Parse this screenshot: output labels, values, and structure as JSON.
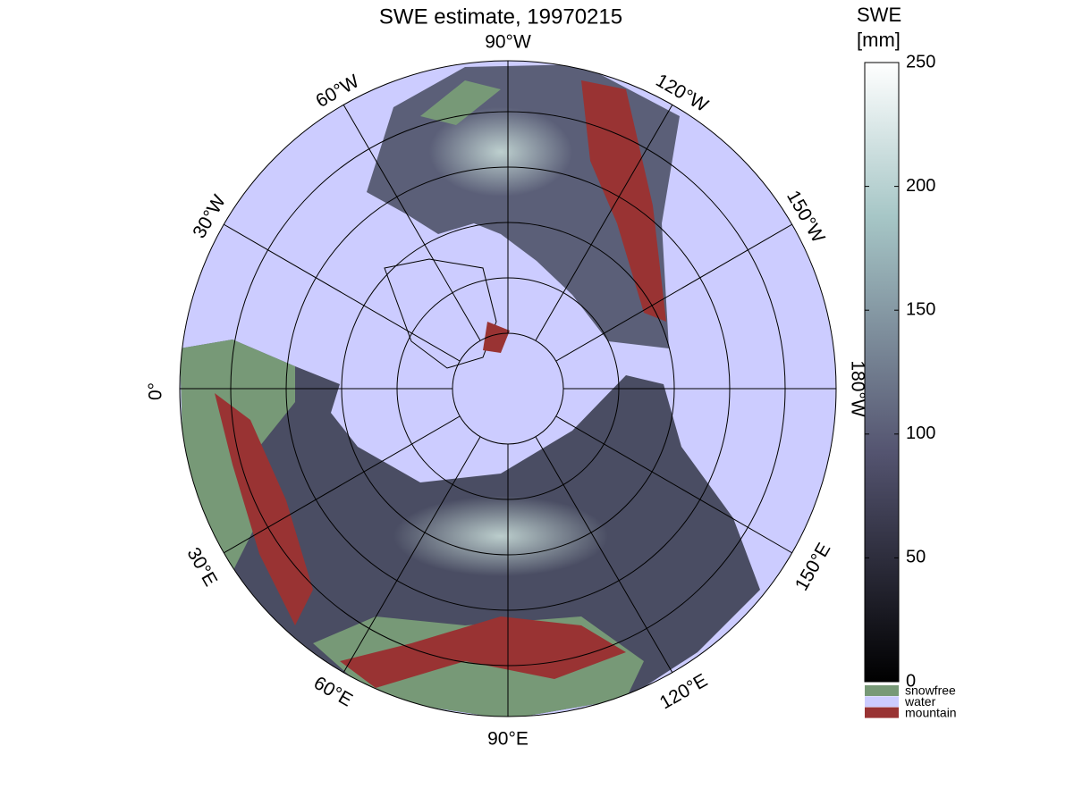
{
  "title": "SWE estimate, 19970215",
  "longitude_labels": [
    "90°W",
    "120°W",
    "150°W",
    "180°W",
    "150°E",
    "120°E",
    "90°E",
    "60°E",
    "30°E",
    "0°",
    "30°W",
    "60°W"
  ],
  "colorbar": {
    "label": [
      "SWE",
      "[mm]"
    ],
    "lim": [
      0,
      250
    ],
    "ticks": [
      0,
      50,
      100,
      150,
      200,
      250
    ]
  },
  "legend": [
    {
      "name": "snowfree",
      "color": "#779977"
    },
    {
      "name": "water",
      "color": "#ccccff"
    },
    {
      "name": "mountain",
      "color": "#993333"
    }
  ]
}
